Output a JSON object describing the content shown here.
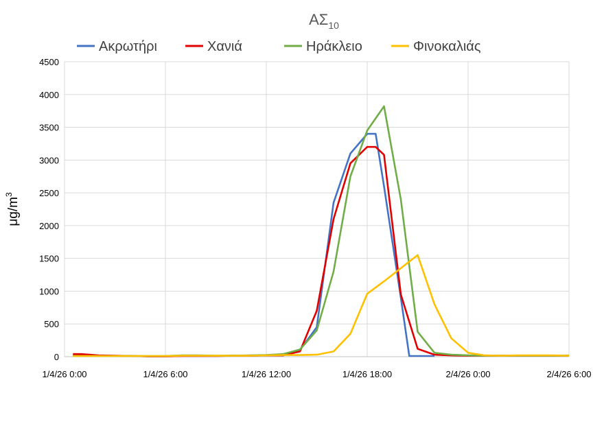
{
  "chart_data": {
    "type": "line",
    "title": "ΑΣ",
    "title_subscript": "10",
    "ylabel": "μg/m",
    "ylabel_superscript": "3",
    "xlabel": "",
    "ylim": [
      0,
      4500
    ],
    "yticks": [
      0,
      500,
      1000,
      1500,
      2000,
      2500,
      3000,
      3500,
      4000,
      4500
    ],
    "xlim_hours": [
      0,
      30
    ],
    "xticks": [
      {
        "h": 0,
        "label": "1/4/26 0:00"
      },
      {
        "h": 6,
        "label": "1/4/26 6:00"
      },
      {
        "h": 12,
        "label": "1/4/26 12:00"
      },
      {
        "h": 18,
        "label": "1/4/26 18:00"
      },
      {
        "h": 24,
        "label": "2/4/26 0:00"
      },
      {
        "h": 30,
        "label": "2/4/26 6:00"
      }
    ],
    "grid": true,
    "legend_position": "top",
    "series": [
      {
        "name": "Ακρωτήρι",
        "color": "#4472C4",
        "x": [
          0.5,
          1,
          2,
          3,
          4,
          5,
          6,
          7,
          8,
          9,
          10,
          11,
          12,
          13,
          14,
          15,
          16,
          17,
          18,
          18.5,
          19,
          20,
          20.5,
          21,
          22
        ],
        "y": [
          20,
          20,
          15,
          10,
          10,
          5,
          5,
          10,
          10,
          10,
          15,
          15,
          20,
          30,
          100,
          450,
          2350,
          3100,
          3400,
          3400,
          2600,
          900,
          10,
          10,
          10
        ]
      },
      {
        "name": "Χανιά",
        "color": "#E00000",
        "x": [
          0.5,
          1,
          2,
          3,
          4,
          5,
          6,
          7,
          8,
          9,
          10,
          11,
          12,
          13,
          14,
          15,
          16,
          17,
          18,
          18.5,
          19,
          20,
          21,
          22,
          23,
          24,
          25,
          26,
          27,
          28,
          29,
          30
        ],
        "y": [
          40,
          40,
          20,
          15,
          10,
          5,
          5,
          10,
          10,
          10,
          15,
          15,
          20,
          20,
          80,
          700,
          2100,
          2950,
          3200,
          3200,
          3080,
          950,
          120,
          30,
          20,
          15,
          15,
          15,
          15,
          15,
          15,
          15
        ]
      },
      {
        "name": "Ηράκλειο",
        "color": "#70AD47",
        "x": [
          0.5,
          1,
          2,
          3,
          4,
          5,
          6,
          7,
          8,
          9,
          10,
          11,
          12,
          13,
          14,
          15,
          16,
          17,
          18,
          19,
          20,
          21,
          22,
          23,
          24,
          25,
          26,
          27,
          28,
          29,
          30
        ],
        "y": [
          10,
          10,
          10,
          10,
          10,
          10,
          10,
          20,
          20,
          15,
          15,
          20,
          25,
          40,
          110,
          400,
          1300,
          2750,
          3450,
          3820,
          2400,
          380,
          60,
          30,
          20,
          15,
          15,
          15,
          15,
          15,
          15
        ]
      },
      {
        "name": "Φινοκαλιάς",
        "color": "#FFC000",
        "x": [
          0.5,
          1,
          2,
          3,
          4,
          5,
          6,
          7,
          8,
          9,
          10,
          11,
          12,
          13,
          14,
          15,
          16,
          17,
          18,
          19,
          20,
          21,
          22,
          23,
          24,
          25,
          26,
          27,
          28,
          29,
          30
        ],
        "y": [
          10,
          10,
          10,
          10,
          10,
          10,
          10,
          15,
          15,
          15,
          15,
          15,
          20,
          25,
          25,
          30,
          80,
          350,
          960,
          1150,
          1350,
          1550,
          800,
          280,
          60,
          20,
          15,
          20,
          20,
          20,
          15
        ]
      }
    ]
  }
}
